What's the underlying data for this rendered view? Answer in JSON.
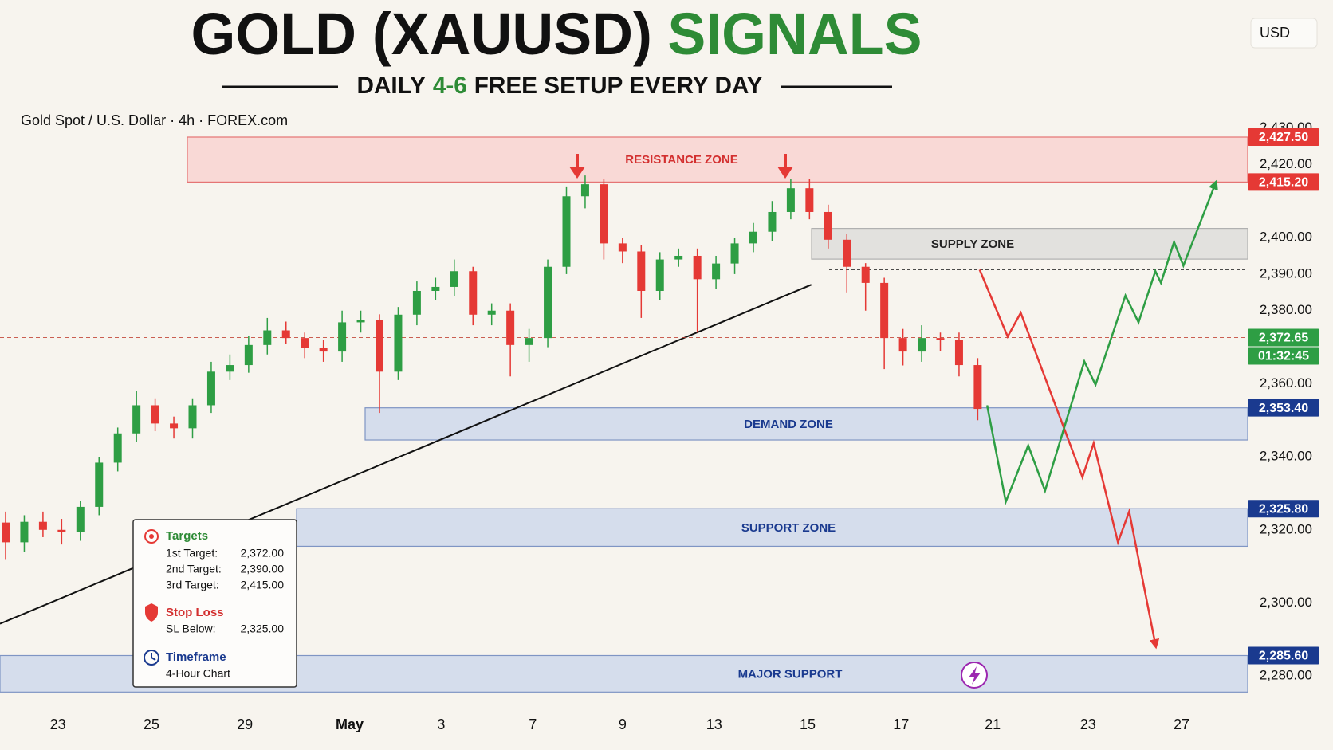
{
  "chart_data": {
    "type": "candlestick",
    "title": [
      "GOLD (XAUUSD)",
      "SIGNALS"
    ],
    "subtitle": [
      "DAILY",
      "4-6",
      "FREE SETUP EVERY DAY"
    ],
    "symbol_info": "Gold Spot / U.S. Dollar · 4h · FOREX.com",
    "currency": "USD",
    "up_color": "#2e9e44",
    "down_color": "#e53935",
    "ylim": [
      2270,
      2440
    ],
    "yticks": [
      {
        "value": 2430,
        "label": "2,430.00"
      },
      {
        "value": 2420,
        "label": "2,420.00"
      },
      {
        "value": 2400,
        "label": "2,400.00"
      },
      {
        "value": 2390,
        "label": "2,390.00"
      },
      {
        "value": 2380,
        "label": "2,380.00"
      },
      {
        "value": 2360,
        "label": "2,360.00"
      },
      {
        "value": 2340,
        "label": "2,340.00"
      },
      {
        "value": 2320,
        "label": "2,320.00"
      },
      {
        "value": 2300,
        "label": "2,300.00"
      },
      {
        "value": 2280,
        "label": "2,280.00"
      }
    ],
    "xticks": [
      {
        "value": 2.8,
        "label": "23"
      },
      {
        "value": 7.8,
        "label": "25"
      },
      {
        "value": 12.8,
        "label": "29"
      },
      {
        "value": 18.4,
        "label": "May"
      },
      {
        "value": 23.3,
        "label": "3"
      },
      {
        "value": 28.2,
        "label": "7"
      },
      {
        "value": 33,
        "label": "9"
      },
      {
        "value": 37.9,
        "label": "13"
      },
      {
        "value": 42.9,
        "label": "15"
      },
      {
        "value": 47.9,
        "label": "17"
      },
      {
        "value": 52.8,
        "label": "21"
      },
      {
        "value": 57.9,
        "label": "23"
      },
      {
        "value": 62.9,
        "label": "27"
      }
    ],
    "candles": {
      "open": [
        2322,
        2316.6,
        2322.2,
        2320,
        2319.4,
        2326.3,
        2338.4,
        2346.4,
        2354.1,
        2349.1,
        2347.8,
        2354.1,
        2363.3,
        2365.1,
        2370.6,
        2374.6,
        2372.5,
        2369.7,
        2368.8,
        2376.8,
        2377.5,
        2363.3,
        2378.9,
        2385.4,
        2386.5,
        2390.8,
        2378.9,
        2380,
        2370.6,
        2372.5,
        2392,
        2411.3,
        2414.6,
        2398.4,
        2396.2,
        2385.4,
        2394,
        2395,
        2388.6,
        2392.9,
        2398.4,
        2401.6,
        2407,
        2413.5,
        2407,
        2399.4,
        2392,
        2387.6,
        2372.5,
        2368.8,
        2372.5,
        2372,
        2365.1
      ],
      "high": [
        2325,
        2324,
        2325,
        2323,
        2328,
        2340,
        2348,
        2358,
        2356,
        2351,
        2356,
        2366,
        2368,
        2373,
        2378,
        2377,
        2374,
        2372,
        2380,
        2380,
        2379,
        2381,
        2388,
        2389,
        2394,
        2392,
        2382,
        2382,
        2375,
        2394,
        2414,
        2417,
        2416,
        2400,
        2398,
        2396,
        2397,
        2397,
        2395,
        2400,
        2404,
        2410,
        2416,
        2416,
        2409,
        2401,
        2393,
        2389,
        2375,
        2376,
        2374,
        2374,
        2367
      ],
      "low": [
        2312,
        2314,
        2318,
        2316,
        2317,
        2324,
        2336,
        2344,
        2347,
        2345,
        2345,
        2352,
        2361,
        2363,
        2368,
        2371,
        2367,
        2366,
        2366,
        2374,
        2352,
        2361,
        2376,
        2383,
        2384,
        2376,
        2376,
        2362,
        2366,
        2370,
        2390,
        2408,
        2394,
        2393,
        2378,
        2383,
        2392,
        2374,
        2386,
        2390,
        2396,
        2399,
        2405,
        2405,
        2397,
        2385,
        2380,
        2364,
        2365,
        2366,
        2369,
        2362,
        2350
      ],
      "close": [
        2316.6,
        2322.2,
        2320,
        2319.4,
        2326.3,
        2338.4,
        2346.4,
        2354.1,
        2349.1,
        2347.8,
        2354.1,
        2363.3,
        2365.1,
        2370.6,
        2374.6,
        2372.5,
        2369.7,
        2368.8,
        2376.8,
        2377.5,
        2363.3,
        2378.9,
        2385.4,
        2386.5,
        2390.8,
        2378.9,
        2380,
        2370.6,
        2372.5,
        2392,
        2411.3,
        2414.6,
        2398.4,
        2396.2,
        2385.4,
        2394,
        2395,
        2388.6,
        2392.9,
        2398.4,
        2401.6,
        2407,
        2413.5,
        2407,
        2399.4,
        2392,
        2387.6,
        2372.5,
        2368.8,
        2372.5,
        2372,
        2365.1,
        2353.1
      ]
    },
    "zones": [
      {
        "label": "RESISTANCE ZONE",
        "top": 2427.5,
        "bottom": 2415.2,
        "top_label": "2,427.50",
        "bottom_label": "2,415.20",
        "fill": "#f9d9d6",
        "stroke": "#e57373",
        "text_color": "#d32f2f",
        "badge_color": "#e53935"
      },
      {
        "label": "SUPPLY ZONE",
        "top": 2402.5,
        "bottom": 2394.1,
        "fill": "#e2e1de",
        "stroke": "#b0b0b0",
        "text_color": "#222222"
      },
      {
        "label": "DEMAND ZONE",
        "top": 2353.4,
        "bottom": 2344.6,
        "top_label": "2,353.40",
        "fill": "#d5ddec",
        "stroke": "#7f95c4",
        "text_color": "#1a3a8f",
        "badge_color": "#1a3a8f"
      },
      {
        "label": "SUPPORT ZONE",
        "top": 2325.8,
        "bottom": 2315.5,
        "top_label": "2,325.80",
        "fill": "#d5ddec",
        "stroke": "#7f95c4",
        "text_color": "#1a3a8f",
        "badge_color": "#1a3a8f"
      },
      {
        "label": "MAJOR SUPPORT",
        "top": 2285.6,
        "bottom": 2275.6,
        "top_label": "2,285.60",
        "fill": "#d5ddec",
        "stroke": "#7f95c4",
        "text_color": "#1a3a8f",
        "badge_color": "#1a3a8f"
      }
    ],
    "current_price": {
      "value": 2372.65,
      "label": "2,372.65",
      "countdown": "01:32:45",
      "color": "#2e9e44"
    },
    "reference_level": 2391.2,
    "trendline": {
      "x": [
        0,
        43.1
      ],
      "y": [
        2294.3,
        2387.1
      ]
    },
    "projections": [
      {
        "color": "#e53935",
        "x": [
          52.1,
          53.6,
          54.3,
          57.6,
          58.2,
          59.5,
          60.1,
          61.5
        ],
        "y": [
          2391.2,
          2372.9,
          2379.4,
          2334.4,
          2343.7,
          2316.6,
          2325,
          2288.7
        ]
      },
      {
        "color": "#2e9e44",
        "x": [
          52.5,
          53.5,
          54.7,
          55.6,
          57.7,
          58.3,
          59.9,
          60.6,
          61.5,
          61.8,
          62.5,
          63,
          64.7
        ],
        "y": [
          2354.1,
          2327.7,
          2343.1,
          2330.7,
          2366.1,
          2359.7,
          2384.1,
          2376.8,
          2390.8,
          2387.6,
          2398.8,
          2392.3,
          2414.6
        ]
      }
    ]
  },
  "info_box": {
    "targets_title": "Targets",
    "targets": [
      [
        "1st Target:",
        "2,372.00"
      ],
      [
        "2nd Target:",
        "2,390.00"
      ],
      [
        "3rd Target:",
        "2,415.00"
      ]
    ],
    "stop_title": "Stop Loss",
    "stop": [
      "SL Below:",
      "2,325.00"
    ],
    "timeframe_title": "Timeframe",
    "timeframe": "4-Hour Chart"
  }
}
